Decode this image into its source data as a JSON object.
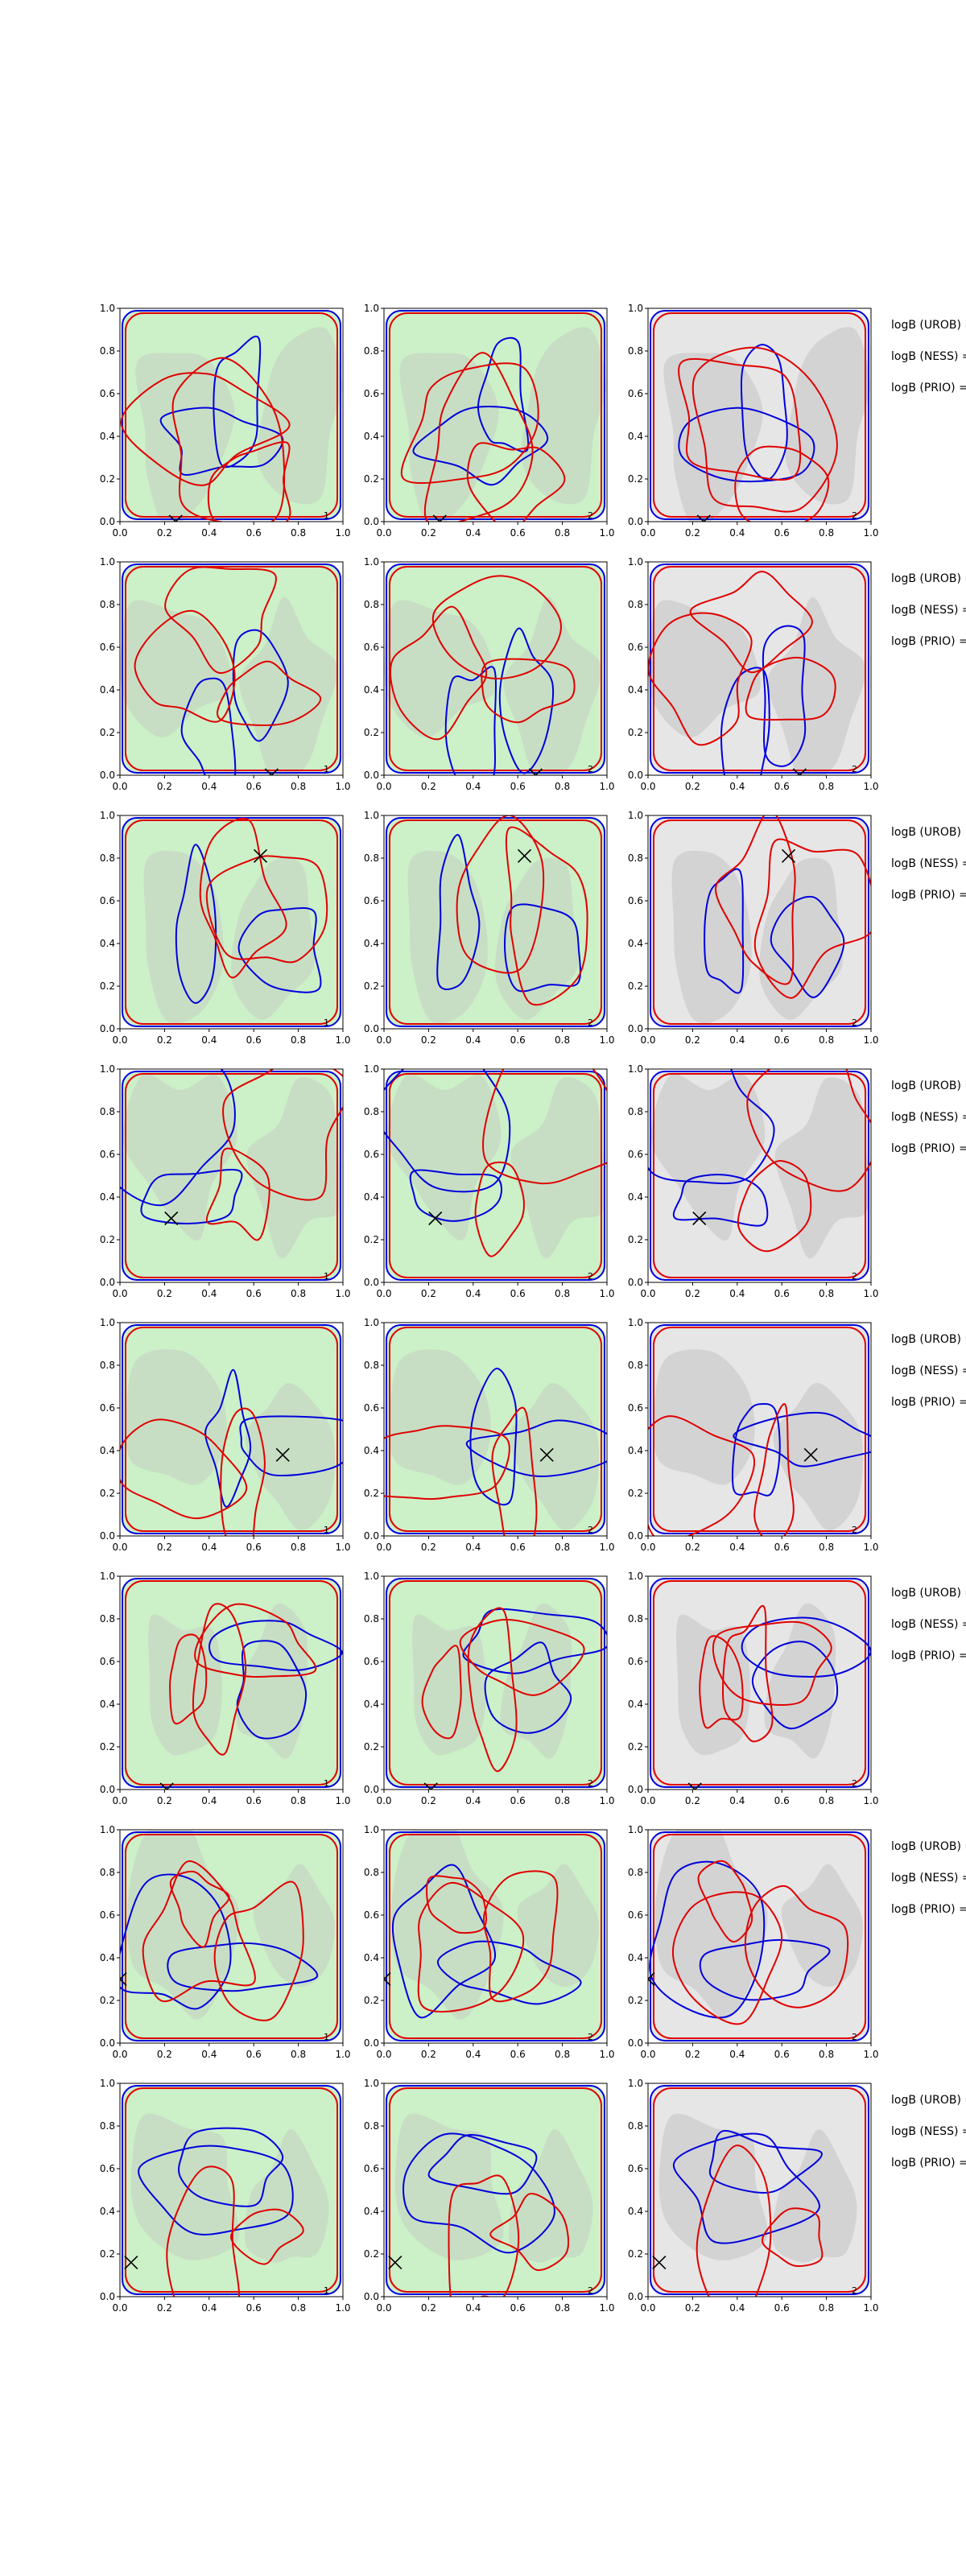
{
  "figure": {
    "side_labels": [
      "logB (UROB) =",
      "logB (NESS) =",
      "logB (PRIO) ="
    ]
  },
  "chart_data": {
    "type": "contour-grid",
    "rows": 8,
    "cols": 3,
    "xlim": [
      0.0,
      1.0
    ],
    "ylim": [
      0.0,
      1.0
    ],
    "xticks": [
      "0.0",
      "0.2",
      "0.4",
      "0.6",
      "0.8",
      "1.0"
    ],
    "yticks": [
      "0.0",
      "0.2",
      "0.4",
      "0.6",
      "0.8",
      "1.0"
    ],
    "colors": {
      "green_fill": "#ccf0c8",
      "light_gray_fill": "#e6e6e6",
      "gray_region": "#bcbcbc",
      "red_contour": "#e00000",
      "blue_contour": "#0000dd",
      "marker": "#000000"
    },
    "panel_backgrounds": [
      "green",
      "green",
      "gray"
    ],
    "corner_labels": [
      "1",
      "2",
      "2"
    ],
    "markers": [
      {
        "row": 0,
        "x": 0.25,
        "y": 0.0
      },
      {
        "row": 1,
        "x": 0.68,
        "y": 0.0
      },
      {
        "row": 2,
        "x": 0.63,
        "y": 0.81
      },
      {
        "row": 3,
        "x": 0.23,
        "y": 0.3
      },
      {
        "row": 4,
        "x": 0.73,
        "y": 0.38
      },
      {
        "row": 5,
        "x": 0.21,
        "y": 0.0
      },
      {
        "row": 6,
        "x": 0.0,
        "y": 0.3
      },
      {
        "row": 7,
        "x": 0.05,
        "y": 0.16
      }
    ]
  }
}
